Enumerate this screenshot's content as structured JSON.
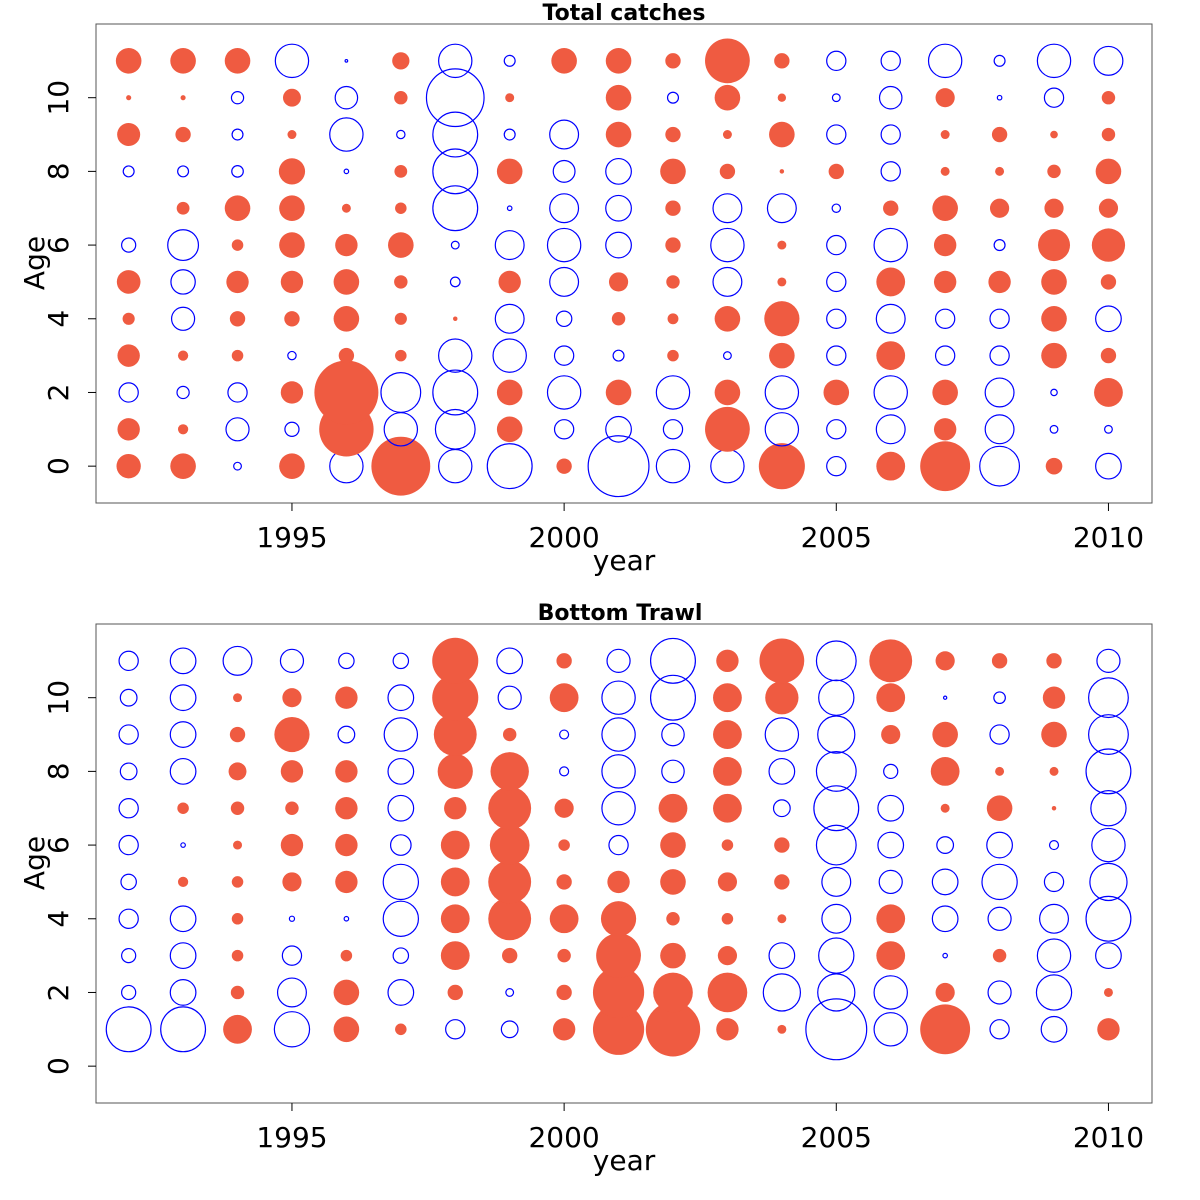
{
  "colors": {
    "positive": "#EF5B41",
    "negative": "#0000FF",
    "frame": "#555555"
  },
  "chart_data": [
    {
      "type": "bubble",
      "title": "Total catches",
      "xlabel": "year",
      "ylabel": "Age",
      "xlim": [
        1991.4,
        2010.8
      ],
      "ylim": [
        -1,
        12
      ],
      "xticks": [
        1995,
        2000,
        2005,
        2010
      ],
      "yticks": [
        0,
        2,
        4,
        6,
        8,
        10
      ],
      "years": [
        1992,
        1993,
        1994,
        1995,
        1996,
        1997,
        1998,
        1999,
        2000,
        2001,
        2002,
        2003,
        2004,
        2005,
        2006,
        2007,
        2008,
        2009,
        2010
      ],
      "ages": [
        0,
        1,
        2,
        3,
        4,
        5,
        6,
        7,
        8,
        9,
        10,
        11
      ],
      "encoding": "filled red = positive, open blue = negative; bubble radius proportional to magnitude",
      "values": [
        [
          0.38,
          0.35,
          -0.3,
          0.35,
          0.19,
          0.37,
          -0.22,
          0.0,
          -0.17,
          0.36,
          0.08,
          0.4
        ],
        [
          0.4,
          0.16,
          -0.19,
          0.16,
          -0.36,
          -0.38,
          -0.48,
          0.2,
          -0.17,
          0.24,
          0.08,
          0.4
        ],
        [
          -0.12,
          -0.36,
          -0.3,
          0.18,
          0.24,
          0.35,
          0.18,
          0.4,
          -0.18,
          -0.17,
          -0.19,
          0.4
        ],
        [
          0.4,
          -0.22,
          0.35,
          -0.13,
          0.24,
          0.35,
          0.4,
          0.4,
          0.41,
          0.14,
          0.28,
          -0.52
        ],
        [
          -0.52,
          0.85,
          1.0,
          0.24,
          0.4,
          0.4,
          0.35,
          0.14,
          -0.07,
          -0.52,
          -0.35,
          -0.04
        ],
        [
          0.92,
          -0.52,
          -0.62,
          0.18,
          0.19,
          0.21,
          0.4,
          0.18,
          0.2,
          -0.13,
          0.21,
          0.27
        ],
        [
          -0.52,
          -0.62,
          -0.7,
          -0.52,
          0.07,
          -0.15,
          -0.12,
          -0.7,
          -0.7,
          -0.7,
          -0.9,
          -0.52
        ],
        [
          -0.7,
          0.4,
          0.4,
          -0.52,
          -0.45,
          0.35,
          -0.45,
          -0.07,
          0.4,
          -0.17,
          0.14,
          -0.17
        ],
        [
          0.24,
          -0.3,
          -0.52,
          -0.3,
          -0.24,
          -0.45,
          -0.52,
          -0.45,
          -0.34,
          -0.45,
          0.0,
          0.4
        ],
        [
          -0.95,
          -0.4,
          0.4,
          -0.17,
          0.21,
          0.3,
          -0.4,
          -0.4,
          -0.4,
          0.4,
          0.4,
          0.4
        ],
        [
          -0.52,
          -0.3,
          -0.52,
          0.18,
          0.17,
          0.21,
          0.24,
          0.24,
          0.4,
          0.24,
          -0.17,
          0.24
        ],
        [
          -0.52,
          0.7,
          0.4,
          -0.12,
          0.4,
          -0.45,
          -0.52,
          -0.45,
          0.24,
          0.14,
          0.4,
          0.7
        ],
        [
          0.72,
          -0.52,
          -0.52,
          0.4,
          0.55,
          0.14,
          0.14,
          -0.45,
          0.07,
          0.4,
          0.13,
          0.24
        ],
        [
          -0.3,
          -0.3,
          0.4,
          -0.3,
          -0.3,
          -0.3,
          -0.3,
          -0.13,
          0.24,
          -0.3,
          -0.12,
          -0.3
        ],
        [
          0.45,
          -0.45,
          -0.52,
          0.45,
          -0.45,
          0.45,
          -0.52,
          0.24,
          -0.3,
          -0.3,
          -0.35,
          -0.3
        ],
        [
          0.78,
          0.35,
          0.4,
          -0.3,
          -0.3,
          0.35,
          0.35,
          0.4,
          0.14,
          0.14,
          0.3,
          -0.52
        ],
        [
          -0.62,
          -0.45,
          -0.45,
          -0.3,
          -0.3,
          0.35,
          -0.17,
          0.3,
          0.14,
          0.24,
          -0.07,
          -0.17
        ],
        [
          0.26,
          -0.12,
          -0.1,
          0.4,
          0.4,
          0.4,
          0.5,
          0.3,
          0.21,
          0.12,
          -0.3,
          -0.52
        ],
        [
          -0.4,
          -0.12,
          0.45,
          0.24,
          -0.4,
          0.24,
          0.52,
          0.3,
          0.4,
          0.21,
          0.21,
          -0.45
        ]
      ]
    },
    {
      "type": "bubble",
      "title": "Bottom Trawl",
      "xlabel": "year",
      "ylabel": "Age",
      "xlim": [
        1991.4,
        2010.8
      ],
      "ylim": [
        -1,
        12
      ],
      "xticks": [
        1995,
        2000,
        2005,
        2010
      ],
      "yticks": [
        0,
        2,
        4,
        6,
        8,
        10
      ],
      "years": [
        1992,
        1993,
        1994,
        1995,
        1996,
        1997,
        1998,
        1999,
        2000,
        2001,
        2002,
        2003,
        2004,
        2005,
        2006,
        2007,
        2008,
        2009,
        2010
      ],
      "ages": [
        1,
        2,
        3,
        4,
        5,
        6,
        7,
        8,
        9,
        10,
        11
      ],
      "encoding": "filled red = positive, open blue = negative; bubble radius proportional to magnitude",
      "values": [
        [
          -0.7,
          -0.22,
          -0.22,
          -0.3,
          -0.24,
          -0.3,
          -0.3,
          -0.26,
          -0.3,
          -0.26,
          -0.3
        ],
        [
          -0.7,
          -0.4,
          -0.4,
          -0.4,
          0.16,
          -0.07,
          0.18,
          -0.4,
          -0.4,
          -0.4,
          -0.4
        ],
        [
          0.45,
          0.21,
          0.18,
          0.18,
          0.18,
          0.14,
          0.21,
          0.28,
          0.24,
          0.14,
          -0.45
        ],
        [
          -0.55,
          -0.45,
          -0.3,
          -0.08,
          0.3,
          0.35,
          0.21,
          0.35,
          0.55,
          0.3,
          -0.36
        ],
        [
          0.4,
          0.4,
          0.18,
          -0.07,
          0.35,
          0.35,
          0.35,
          0.35,
          -0.26,
          0.35,
          -0.24
        ],
        [
          0.18,
          -0.4,
          -0.24,
          -0.55,
          -0.55,
          -0.32,
          -0.4,
          -0.4,
          -0.52,
          -0.4,
          -0.24
        ],
        [
          -0.3,
          0.24,
          0.45,
          0.45,
          0.45,
          0.45,
          0.35,
          0.55,
          0.67,
          0.72,
          0.72
        ],
        [
          -0.26,
          -0.12,
          0.24,
          0.67,
          0.67,
          0.62,
          0.67,
          0.6,
          0.21,
          -0.36,
          -0.4
        ],
        [
          0.35,
          0.24,
          0.21,
          0.45,
          0.24,
          0.18,
          0.3,
          -0.14,
          -0.14,
          0.45,
          0.24
        ],
        [
          0.8,
          0.8,
          0.7,
          0.55,
          0.35,
          -0.3,
          -0.52,
          -0.52,
          -0.52,
          -0.52,
          -0.36
        ],
        [
          0.85,
          0.62,
          0.4,
          0.21,
          0.4,
          0.4,
          0.45,
          -0.35,
          -0.35,
          -0.7,
          -0.7
        ],
        [
          0.35,
          0.62,
          0.3,
          0.18,
          0.3,
          0.18,
          0.45,
          0.45,
          0.45,
          0.45,
          0.35
        ],
        [
          0.14,
          -0.58,
          -0.4,
          0.14,
          0.24,
          0.24,
          -0.26,
          -0.4,
          -0.52,
          0.52,
          0.7
        ],
        [
          -0.95,
          -0.58,
          -0.55,
          -0.45,
          -0.45,
          -0.62,
          -0.7,
          -0.62,
          -0.58,
          -0.55,
          -0.62
        ],
        [
          -0.52,
          -0.52,
          0.45,
          0.45,
          -0.36,
          -0.4,
          -0.4,
          -0.22,
          0.3,
          0.45,
          0.67
        ],
        [
          0.78,
          0.3,
          -0.07,
          -0.4,
          -0.4,
          -0.26,
          0.14,
          0.45,
          0.4,
          -0.05,
          0.3
        ],
        [
          -0.3,
          -0.36,
          0.21,
          -0.36,
          -0.55,
          -0.4,
          0.4,
          0.14,
          -0.3,
          -0.18,
          0.24
        ],
        [
          -0.4,
          -0.55,
          -0.52,
          -0.45,
          -0.3,
          -0.14,
          0.07,
          0.14,
          0.4,
          0.35,
          0.24
        ],
        [
          0.35,
          0.14,
          -0.4,
          -0.7,
          -0.58,
          -0.52,
          -0.55,
          -0.7,
          -0.62,
          -0.62,
          -0.36
        ]
      ]
    }
  ]
}
